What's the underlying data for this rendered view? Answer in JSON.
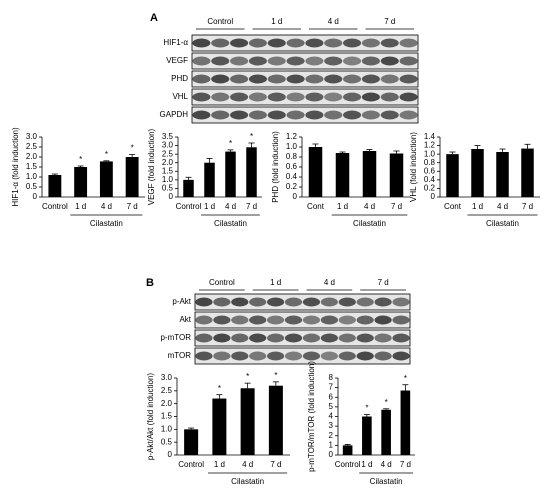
{
  "panel_a": {
    "label": "A",
    "groups": [
      "Control",
      "1 d",
      "4 d",
      "7 d"
    ],
    "blots": [
      "HIF1-α",
      "VEGF",
      "PHD",
      "VHL",
      "GAPDH"
    ]
  },
  "panel_b": {
    "label": "B",
    "groups": [
      "Control",
      "1 d",
      "4 d",
      "7 d"
    ],
    "blots": [
      "p-Akt",
      "Akt",
      "p-mTOR",
      "mTOR"
    ]
  },
  "chart_data": [
    {
      "type": "bar",
      "y_label": "HIF1-α (fold induction)",
      "categories": [
        "Control",
        "1 d",
        "4 d",
        "7 d"
      ],
      "values": [
        1.1,
        1.5,
        1.78,
        2.0
      ],
      "errors": [
        0.05,
        0.05,
        0.03,
        0.12
      ],
      "annotations": [
        null,
        "*",
        "*",
        "*"
      ],
      "group_label": "Cilastatin",
      "color": "#000000",
      "ylim": [
        0,
        3
      ],
      "yticks": [
        0,
        0.5,
        {
          "value": 1,
          "label": "1.0"
        },
        1.5,
        {
          "value": 2,
          "label": "2.0"
        },
        2.5,
        {
          "value": 3,
          "label": "3.0"
        }
      ]
    },
    {
      "type": "bar",
      "y_label": "VEGF (fold induction)",
      "categories": [
        "Control",
        "1 d",
        "4 d",
        "7 d"
      ],
      "values": [
        1.0,
        2.0,
        2.65,
        2.9
      ],
      "errors": [
        0.15,
        0.25,
        0.1,
        0.25
      ],
      "annotations": [
        null,
        null,
        "*",
        "*"
      ],
      "group_label": "Cilastatin",
      "color": "#000000",
      "ylim": [
        0,
        3.5
      ],
      "yticks": [
        0,
        0.5,
        {
          "value": 1,
          "label": "1.0"
        },
        1.5,
        {
          "value": 2,
          "label": "2.0"
        },
        2.5,
        {
          "value": 3,
          "label": "3.0"
        },
        3.5
      ]
    },
    {
      "type": "bar",
      "y_label": "PHD (fold induction)",
      "categories": [
        "Cont",
        "1 d",
        "4 d",
        "7 d"
      ],
      "values": [
        1.0,
        0.88,
        0.92,
        0.87
      ],
      "errors": [
        0.06,
        0.02,
        0.03,
        0.05
      ],
      "group_label": "Cilastatin",
      "color": "#000000",
      "ylim": [
        0,
        1.2
      ],
      "yticks": [
        0,
        0.2,
        0.4,
        0.6,
        0.8,
        {
          "value": 1,
          "label": "1.0"
        },
        1.2
      ]
    },
    {
      "type": "bar",
      "y_label": "VHL (fold induction)",
      "categories": [
        "Cont",
        "1 d",
        "4 d",
        "7 d"
      ],
      "values": [
        1.0,
        1.12,
        1.05,
        1.13
      ],
      "errors": [
        0.05,
        0.08,
        0.07,
        0.1
      ],
      "group_label": "Cilastatin",
      "color": "#000000",
      "ylim": [
        0,
        1.4
      ],
      "yticks": [
        0,
        0.2,
        0.4,
        0.6,
        0.8,
        {
          "value": 1,
          "label": "1.0"
        },
        1.2,
        1.4
      ]
    },
    {
      "type": "bar",
      "y_label": "p-Akt/Akt (fold induction)",
      "categories": [
        "Control",
        "1 d",
        "4 d",
        "7 d"
      ],
      "values": [
        1.0,
        2.2,
        2.6,
        2.7
      ],
      "errors": [
        0.05,
        0.15,
        0.2,
        0.15
      ],
      "annotations": [
        null,
        "*",
        "*",
        "*"
      ],
      "group_label": "Cilastatin",
      "color": "#000000",
      "ylim": [
        0,
        3
      ],
      "yticks": [
        0,
        0.5,
        {
          "value": 1,
          "label": "1.0"
        },
        1.5,
        {
          "value": 2,
          "label": "2.0"
        },
        2.5,
        {
          "value": 3,
          "label": "3.0"
        }
      ]
    },
    {
      "type": "bar",
      "y_label": "p-mTOR/mTOR (fold induction)",
      "categories": [
        "Control",
        "1 d",
        "4 d",
        "7 d"
      ],
      "values": [
        1.0,
        4.0,
        4.7,
        6.7
      ],
      "errors": [
        0.1,
        0.2,
        0.1,
        0.6
      ],
      "annotations": [
        null,
        "*",
        "*",
        "*"
      ],
      "group_label": "Cilastatin",
      "color": "#000000",
      "ylim": [
        0,
        8
      ],
      "yticks": [
        0,
        1,
        2,
        3,
        4,
        5,
        6,
        7,
        8
      ]
    }
  ]
}
